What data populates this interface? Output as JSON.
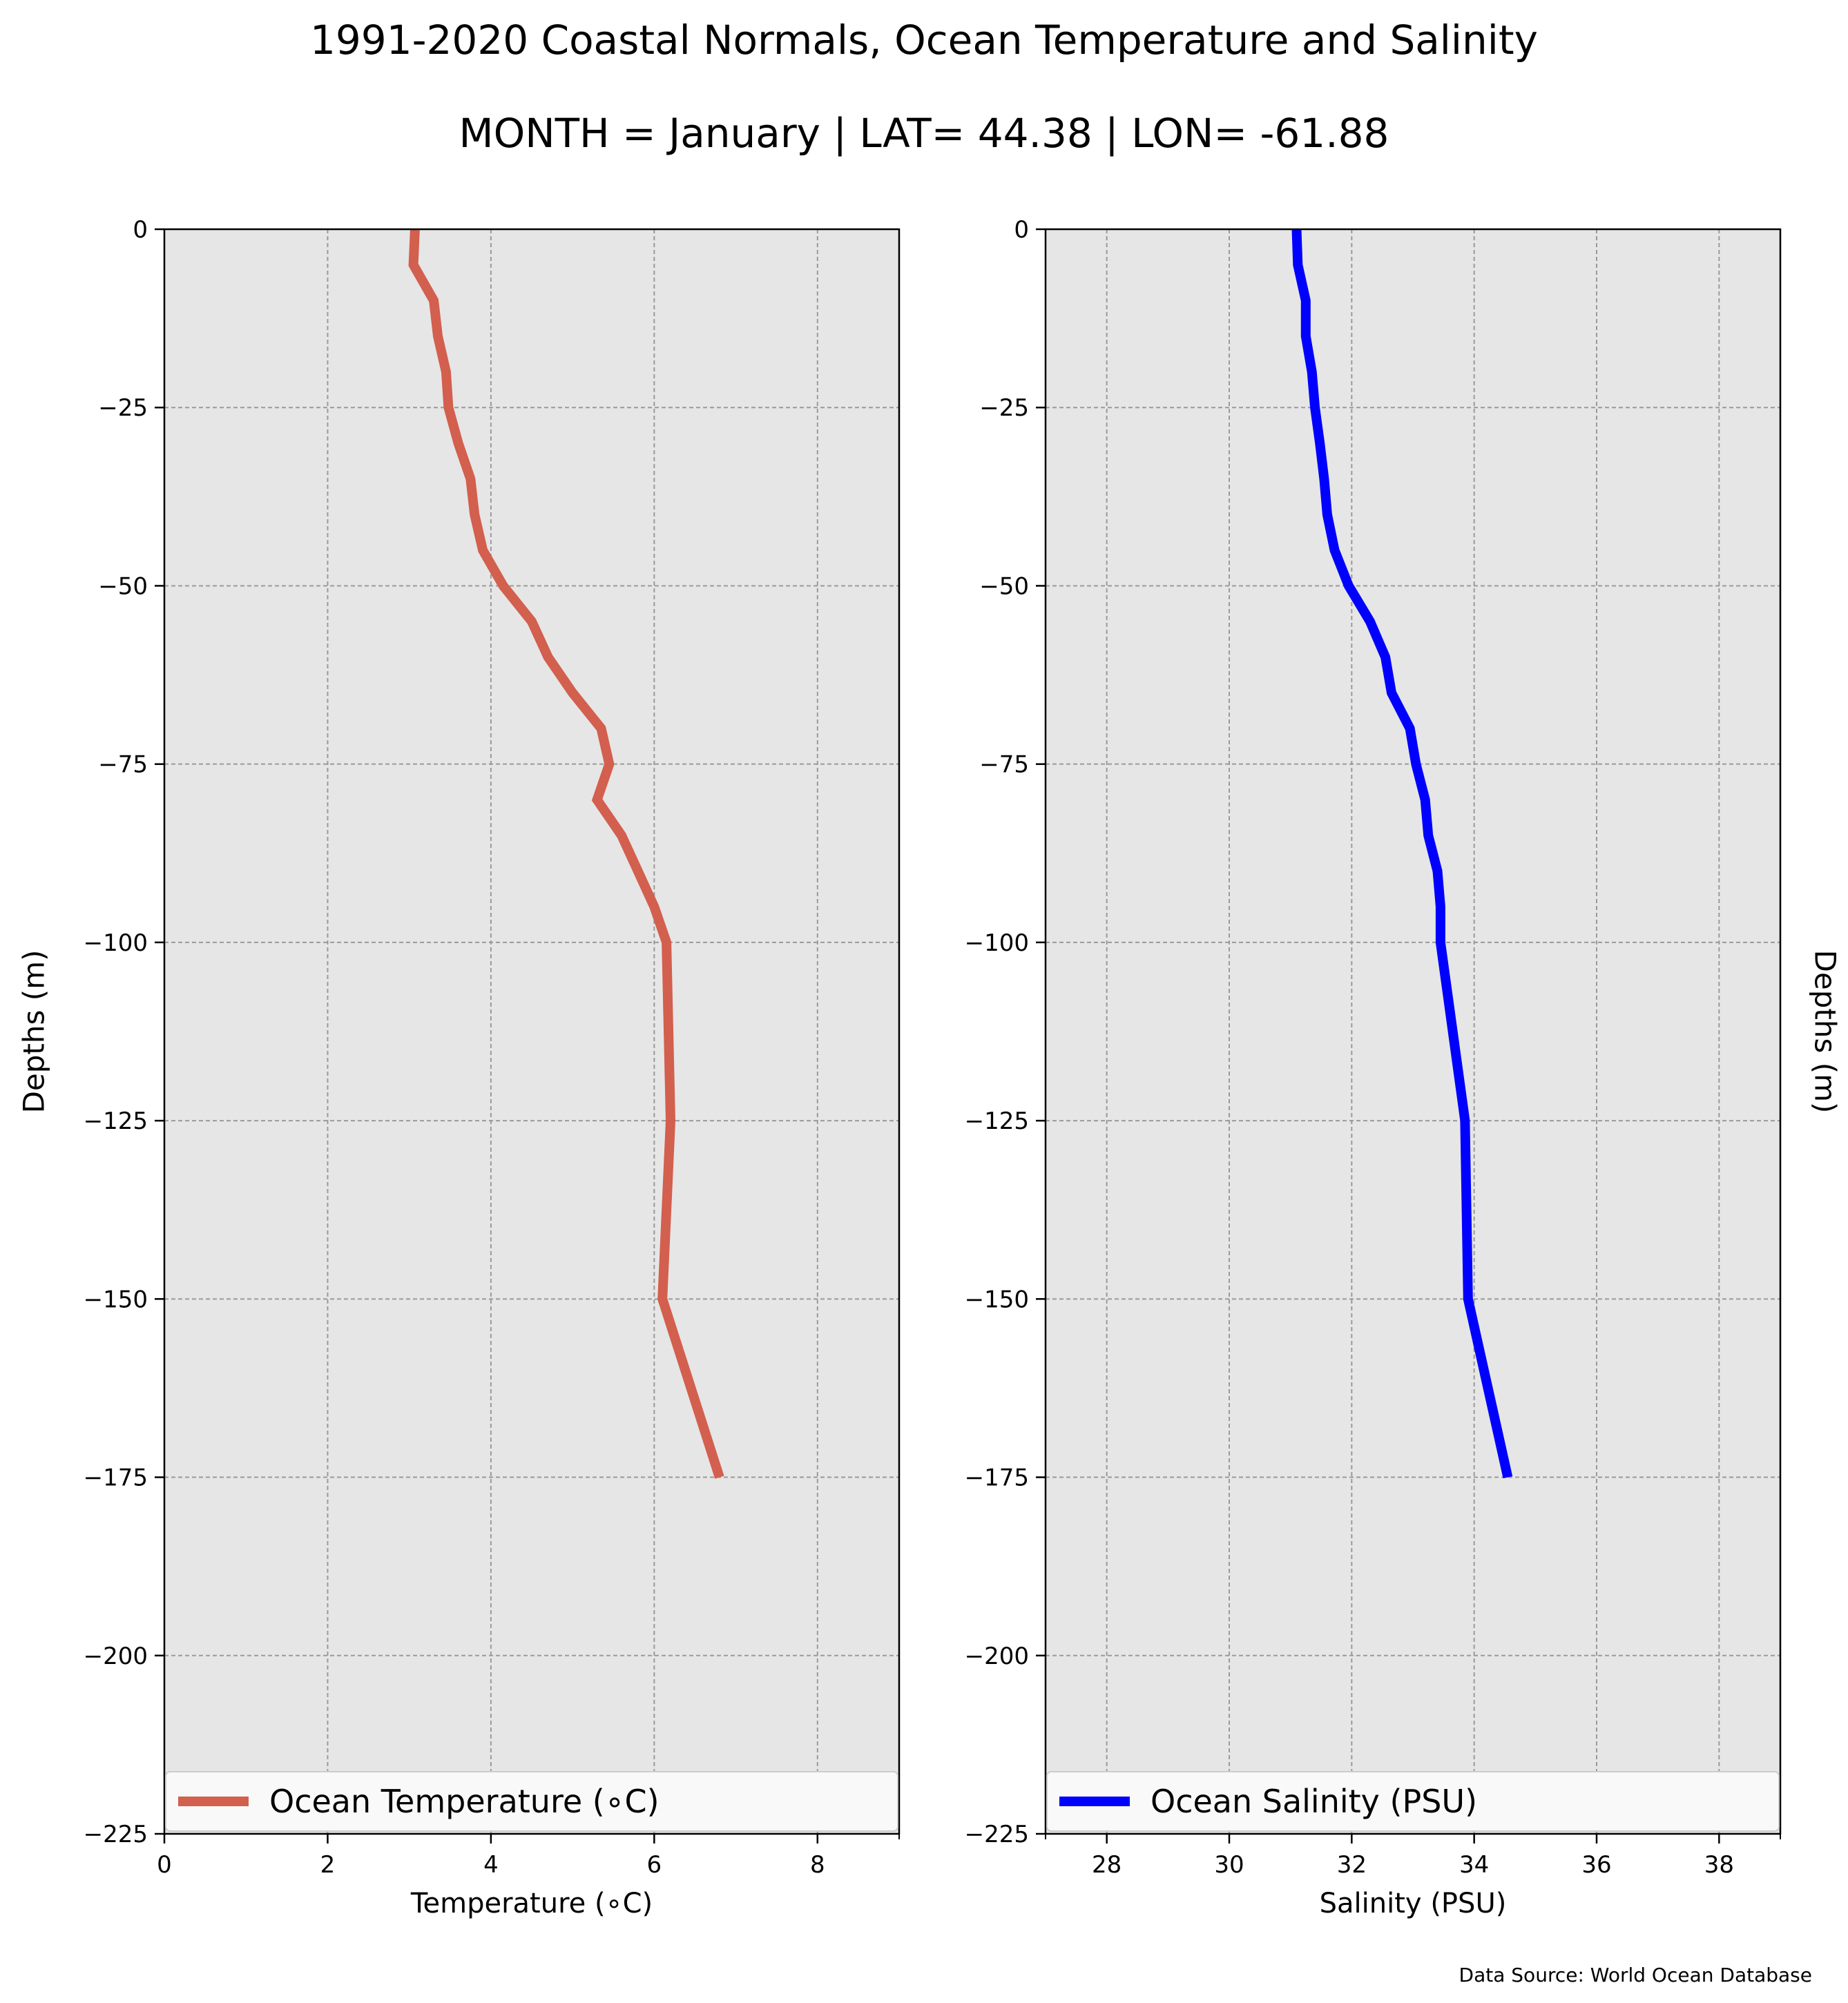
{
  "title": "1991-2020 Coastal Normals, Ocean Temperature and Salinity",
  "subtitle": "MONTH = January | LAT= 44.38 | LON= -61.88",
  "source": "Data Source: World Ocean Database",
  "chart_data": [
    {
      "type": "line",
      "xlabel": "Temperature (∘C)",
      "ylabel": "Depths (m)",
      "xlim": [
        0,
        9
      ],
      "ylim": [
        -225,
        0
      ],
      "xticks": [
        0,
        2,
        4,
        6,
        8
      ],
      "xtick_labels": [
        "0",
        "2",
        "4",
        "6",
        "8"
      ],
      "yticks": [
        0,
        -25,
        -50,
        -75,
        -100,
        -125,
        -150,
        -175,
        -200,
        -225
      ],
      "ytick_labels": [
        "0",
        "−25",
        "−50",
        "−75",
        "−100",
        "−125",
        "−150",
        "−175",
        "−200",
        "−225"
      ],
      "grid": true,
      "legend_position": "lower center",
      "series": [
        {
          "name": "Ocean Temperature (∘C)",
          "color": "#d35f4e",
          "points": [
            [
              3.07,
              0
            ],
            [
              3.05,
              -5
            ],
            [
              3.3,
              -10
            ],
            [
              3.35,
              -15
            ],
            [
              3.45,
              -20
            ],
            [
              3.48,
              -25
            ],
            [
              3.6,
              -30
            ],
            [
              3.75,
              -35
            ],
            [
              3.8,
              -40
            ],
            [
              3.9,
              -45
            ],
            [
              4.15,
              -50
            ],
            [
              4.5,
              -55
            ],
            [
              4.7,
              -60
            ],
            [
              5.0,
              -65
            ],
            [
              5.35,
              -70
            ],
            [
              5.45,
              -75
            ],
            [
              5.3,
              -80
            ],
            [
              5.6,
              -85
            ],
            [
              5.8,
              -90
            ],
            [
              6.0,
              -95
            ],
            [
              6.15,
              -100
            ],
            [
              6.2,
              -125
            ],
            [
              6.1,
              -150
            ],
            [
              6.8,
              -175
            ]
          ]
        }
      ]
    },
    {
      "type": "line",
      "xlabel": "Salinity (PSU)",
      "ylabel": "Depths (m)",
      "xlim": [
        27,
        39
      ],
      "ylim": [
        -225,
        0
      ],
      "xticks": [
        28,
        30,
        32,
        34,
        36,
        38
      ],
      "xtick_labels": [
        "28",
        "30",
        "32",
        "34",
        "36",
        "38"
      ],
      "yticks": [
        0,
        -25,
        -50,
        -75,
        -100,
        -125,
        -150,
        -175,
        -200,
        -225
      ],
      "ytick_labels": [
        "0",
        "−25",
        "−50",
        "−75",
        "−100",
        "−125",
        "−150",
        "−175",
        "−200",
        "−225"
      ],
      "grid": true,
      "legend_position": "lower center",
      "series": [
        {
          "name": "Ocean Salinity (PSU)",
          "color": "#0000ff",
          "points": [
            [
              31.1,
              0
            ],
            [
              31.12,
              -5
            ],
            [
              31.25,
              -10
            ],
            [
              31.25,
              -15
            ],
            [
              31.35,
              -20
            ],
            [
              31.4,
              -25
            ],
            [
              31.48,
              -30
            ],
            [
              31.55,
              -35
            ],
            [
              31.6,
              -40
            ],
            [
              31.72,
              -45
            ],
            [
              31.95,
              -50
            ],
            [
              32.3,
              -55
            ],
            [
              32.55,
              -60
            ],
            [
              32.65,
              -65
            ],
            [
              32.95,
              -70
            ],
            [
              33.05,
              -75
            ],
            [
              33.2,
              -80
            ],
            [
              33.25,
              -85
            ],
            [
              33.4,
              -90
            ],
            [
              33.45,
              -95
            ],
            [
              33.45,
              -100
            ],
            [
              33.85,
              -125
            ],
            [
              33.9,
              -150
            ],
            [
              34.55,
              -175
            ]
          ]
        }
      ]
    }
  ]
}
